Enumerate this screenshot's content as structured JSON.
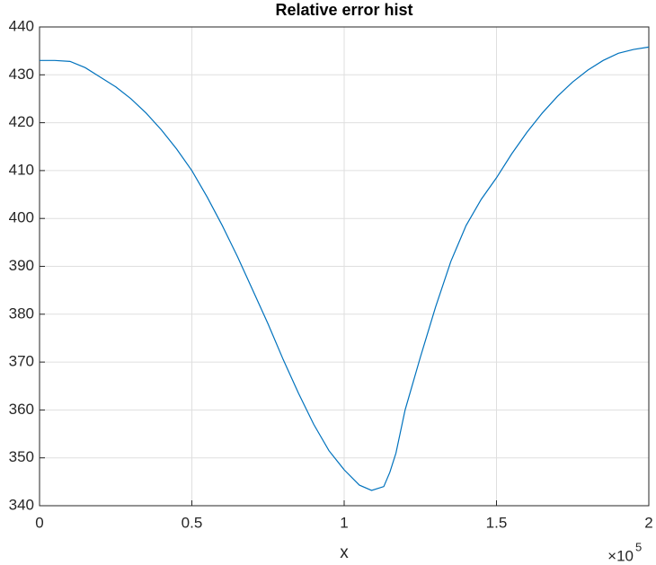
{
  "chart_data": {
    "type": "line",
    "title": "Relative error hist",
    "x_label": "x",
    "x_multiplier": {
      "base": "×10",
      "exponent": "5"
    },
    "x": [
      0,
      0.05,
      0.1,
      0.15,
      0.2,
      0.25,
      0.3,
      0.35,
      0.4,
      0.45,
      0.5,
      0.55,
      0.6,
      0.65,
      0.7,
      0.75,
      0.8,
      0.85,
      0.9,
      0.95,
      1.0,
      1.05,
      1.09,
      1.13,
      1.15,
      1.17,
      1.2,
      1.25,
      1.3,
      1.35,
      1.4,
      1.45,
      1.5,
      1.55,
      1.6,
      1.65,
      1.7,
      1.75,
      1.8,
      1.85,
      1.9,
      1.95,
      2.0
    ],
    "series": [
      {
        "color": "#0072bd",
        "values": [
          433,
          433,
          432.8,
          431.5,
          429.5,
          427.5,
          425,
          422,
          418.5,
          414.5,
          410,
          404.5,
          398.5,
          392,
          385,
          378,
          370.5,
          363.5,
          357,
          351.5,
          347.5,
          344.3,
          343.2,
          344,
          347,
          351,
          360,
          371,
          381.5,
          391,
          398.5,
          404,
          408.5,
          413.5,
          418,
          422,
          425.5,
          428.5,
          431,
          433,
          434.5,
          435.3,
          435.8
        ]
      }
    ],
    "xlim": [
      0,
      2
    ],
    "xticks": [
      0,
      0.5,
      1,
      1.5,
      2
    ],
    "ylim": [
      340,
      440
    ],
    "yticks": [
      340,
      350,
      360,
      370,
      380,
      390,
      400,
      410,
      420,
      430,
      440
    ],
    "grid": true
  }
}
